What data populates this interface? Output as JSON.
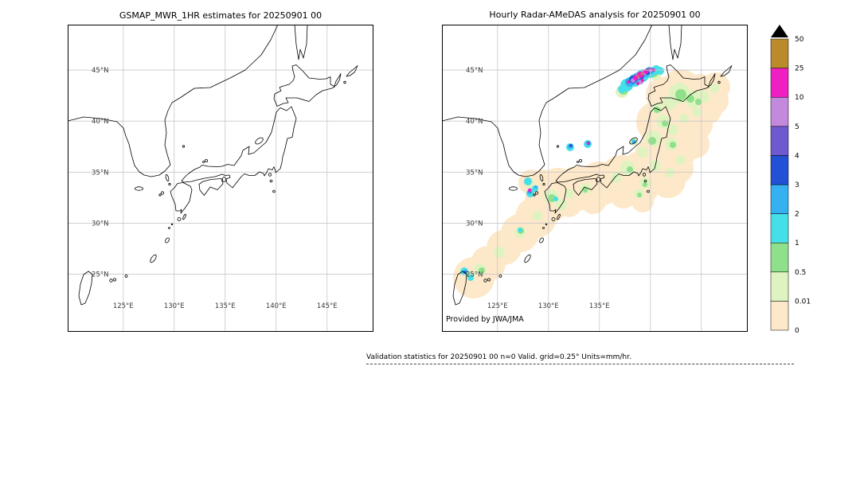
{
  "figure": {
    "background": "#ffffff",
    "caption": "Validation statistics for 20250901 00  n=0 Valid. grid=0.25° Units=mm/hr."
  },
  "colorbar": {
    "units": "mm/hr",
    "tick_labels": [
      "0",
      "0.01",
      "0.5",
      "1",
      "2",
      "3",
      "4",
      "5",
      "10",
      "25",
      "50"
    ],
    "colors": [
      "#fde8c9",
      "#dff3c0",
      "#8fe08a",
      "#45dfe8",
      "#35b0f0",
      "#2251d6",
      "#6e59ce",
      "#c289dd",
      "#ef1fc4",
      "#ba8a2b"
    ],
    "over_color": "#000000"
  },
  "chart_data": [
    {
      "type": "map",
      "title": "GSMAP_MWR_1HR estimates for 20250901 00",
      "lon_range": [
        119.55,
        149.55
      ],
      "lat_range": [
        19.35,
        49.45
      ],
      "lat_gridlines": [
        25,
        30,
        35,
        40,
        45
      ],
      "lon_gridlines": [
        125,
        130,
        135,
        140,
        145
      ],
      "lat_tick_labels": [
        "25°N",
        "30°N",
        "35°N",
        "40°N",
        "45°N"
      ],
      "labeled_lons": [
        125,
        130,
        135,
        140,
        145
      ],
      "lon_tick_labels": [
        "125°E",
        "130°E",
        "135°E",
        "140°E",
        "145°E"
      ],
      "precip_note": "no precipitation estimates plotted (empty field, n=0)"
    },
    {
      "type": "map",
      "title": "Hourly Radar-AMeDAS analysis for 20250901 00",
      "credit": "Provided by JWA/JMA",
      "lon_range": [
        119.55,
        149.55
      ],
      "lat_range": [
        19.35,
        49.45
      ],
      "lat_gridlines": [
        25,
        30,
        35,
        40,
        45
      ],
      "lon_gridlines": [
        125,
        130,
        135,
        140,
        145
      ],
      "lat_tick_labels": [
        "25°N",
        "30°N",
        "35°N",
        "40°N",
        "45°N"
      ],
      "labeled_lons": [
        125,
        130,
        135
      ],
      "lon_tick_labels": [
        "125°E",
        "130°E",
        "135°E"
      ],
      "precip_summary": [
        "radar coverage (0 mm/hr, pale peach) swath along the whole archipelago from the Ryukyu Islands to Hokkaido",
        "intense rain band (5-50 mm/hr, magenta/purple/blue) over northwestern Hokkaido and the adjacent Japan Sea",
        "moderate cells (1-25 mm/hr) in the Korea Strait west of Kyushu near 33N 128E",
        "small cells (1-10 mm/hr) in the central Japan Sea near 37.5N 132-134E",
        "showers (1-4 mm/hr) near the Sakishima Islands in the southwest corner",
        "widespread light rain (0.01-1 mm/hr) over Hokkaido, northern Honshu and western Japan"
      ],
      "blobs": {
        "0": [
          [
            40,
            318,
            26
          ],
          [
            58,
            300,
            22
          ],
          [
            78,
            280,
            22
          ],
          [
            98,
            262,
            24
          ],
          [
            118,
            242,
            26
          ],
          [
            132,
            222,
            28
          ],
          [
            146,
            206,
            26
          ],
          [
            126,
            200,
            18
          ],
          [
            112,
            198,
            16
          ],
          [
            170,
            206,
            28
          ],
          [
            190,
            222,
            16
          ],
          [
            160,
            228,
            14
          ],
          [
            198,
            200,
            28
          ],
          [
            226,
            192,
            28
          ],
          [
            252,
            186,
            28
          ],
          [
            274,
            180,
            26
          ],
          [
            290,
            164,
            24
          ],
          [
            278,
            146,
            26
          ],
          [
            270,
            122,
            26
          ],
          [
            282,
            104,
            22
          ],
          [
            278,
            88,
            22
          ],
          [
            300,
            82,
            26
          ],
          [
            324,
            86,
            24
          ],
          [
            344,
            78,
            18
          ],
          [
            344,
            96,
            16
          ],
          [
            332,
            106,
            20
          ],
          [
            322,
            126,
            18
          ],
          [
            318,
            150,
            18
          ],
          [
            308,
            130,
            24
          ],
          [
            300,
            156,
            22
          ],
          [
            252,
            206,
            20
          ],
          [
            228,
            213,
            18
          ],
          [
            284,
            196,
            22
          ],
          [
            296,
            180,
            20
          ],
          [
            262,
            164,
            20
          ],
          [
            32,
            312,
            16
          ],
          [
            252,
            222,
            14
          ]
        ],
        "1": [
          [
            298,
            86,
            13
          ],
          [
            316,
            94,
            11
          ],
          [
            286,
            98,
            9
          ],
          [
            278,
            122,
            9
          ],
          [
            266,
            143,
            10
          ],
          [
            288,
            150,
            8
          ],
          [
            252,
            160,
            7
          ],
          [
            233,
            180,
            9
          ],
          [
            219,
            192,
            7
          ],
          [
            268,
            177,
            7
          ],
          [
            255,
            199,
            7
          ],
          [
            247,
            212,
            6
          ],
          [
            180,
            206,
            7
          ],
          [
            160,
            212,
            6
          ],
          [
            137,
            216,
            9
          ],
          [
            150,
            226,
            7
          ],
          [
            120,
            240,
            6
          ],
          [
            98,
            261,
            7
          ],
          [
            72,
            286,
            7
          ],
          [
            48,
            307,
            7
          ],
          [
            36,
            315,
            6
          ],
          [
            110,
            200,
            6
          ],
          [
            270,
            105,
            7
          ],
          [
            290,
            132,
            7
          ],
          [
            304,
            118,
            6
          ],
          [
            328,
            90,
            8
          ],
          [
            342,
            80,
            6
          ],
          [
            320,
            110,
            6
          ],
          [
            300,
            170,
            6
          ],
          [
            286,
            186,
            6
          ],
          [
            226,
            84,
            8
          ],
          [
            268,
            62,
            8
          ],
          [
            241,
            147,
            5
          ]
        ],
        "2": [
          [
            300,
            88,
            7
          ],
          [
            312,
            93,
            5
          ],
          [
            322,
            97,
            4
          ],
          [
            264,
            146,
            5
          ],
          [
            236,
            182,
            4
          ],
          [
            138,
            218,
            5
          ],
          [
            112,
            210,
            4
          ],
          [
            99,
            259,
            4
          ],
          [
            50,
            309,
            4
          ],
          [
            36,
            316,
            3
          ],
          [
            270,
            107,
            4
          ],
          [
            280,
            124,
            4
          ],
          [
            255,
            201,
            3
          ],
          [
            248,
            214,
            3
          ],
          [
            180,
            208,
            3
          ],
          [
            290,
            151,
            4
          ],
          [
            228,
            82,
            6
          ],
          [
            266,
            60,
            6
          ]
        ],
        "3": [
          [
            232,
            76,
            8
          ],
          [
            242,
            70,
            8
          ],
          [
            252,
            64,
            8
          ],
          [
            261,
            60,
            7
          ],
          [
            269,
            57,
            6
          ],
          [
            274,
            58,
            5
          ],
          [
            226,
            81,
            5
          ],
          [
            161,
            154,
            5
          ],
          [
            183,
            150,
            5
          ],
          [
            108,
            197,
            5
          ],
          [
            117,
            206,
            4
          ],
          [
            111,
            212,
            5
          ],
          [
            28,
            310,
            5
          ],
          [
            36,
            318,
            4
          ],
          [
            98,
            258,
            3
          ],
          [
            143,
            219,
            3
          ],
          [
            241,
            147,
            3
          ]
        ],
        "4": [
          [
            236,
            72,
            6
          ],
          [
            246,
            66,
            6
          ],
          [
            256,
            61,
            5
          ],
          [
            263,
            58,
            4
          ],
          [
            161,
            153,
            3
          ],
          [
            110,
            210,
            3
          ],
          [
            118,
            204,
            2
          ],
          [
            29,
            311,
            3
          ],
          [
            184,
            149,
            3
          ],
          [
            241,
            147,
            2
          ]
        ],
        "5": [
          [
            240,
            69,
            5
          ],
          [
            249,
            64,
            5
          ],
          [
            258,
            59,
            4
          ],
          [
            162,
            152,
            2
          ],
          [
            111,
            209,
            2
          ],
          [
            29,
            311,
            1.5
          ]
        ],
        "6": [
          [
            244,
            66,
            4
          ],
          [
            253,
            61,
            3.5
          ],
          [
            260,
            57,
            3
          ],
          [
            184,
            149,
            2
          ]
        ],
        "7": [
          [
            247,
            64,
            4
          ],
          [
            254,
            60,
            3.5
          ],
          [
            240,
            70,
            3
          ],
          [
            262,
            57,
            2.5
          ],
          [
            250,
            72,
            3
          ],
          [
            111,
            208,
            2.5
          ]
        ],
        "8": [
          [
            243,
            67,
            3
          ],
          [
            249,
            63,
            4
          ],
          [
            256,
            59,
            3
          ],
          [
            262,
            56,
            2
          ],
          [
            266,
            57,
            2
          ],
          [
            234,
            72,
            2
          ],
          [
            246,
            74,
            2
          ],
          [
            252,
            70,
            2
          ],
          [
            110,
            208,
            2
          ],
          [
            183,
            149,
            1.5
          ]
        ],
        "9": [
          [
            251,
            62,
            1.5
          ],
          [
            247,
            65,
            1.2
          ]
        ]
      }
    }
  ]
}
